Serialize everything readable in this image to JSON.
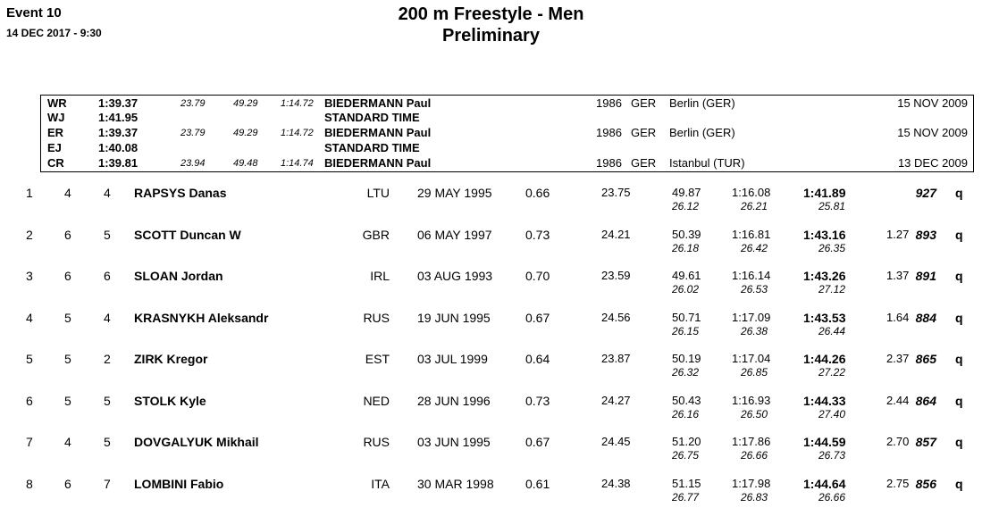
{
  "header": {
    "event": "Event 10",
    "datetime": "14 DEC 2017 -  9:30",
    "title": "200 m Freestyle - Men",
    "subtitle": "Preliminary"
  },
  "records": [
    {
      "code": "WR",
      "time": "1:39.37",
      "splits": [
        "23.79",
        "49.29",
        "1:14.72"
      ],
      "name": "BIEDERMANN Paul",
      "yob": "1986",
      "nat": "GER",
      "place": "Berlin (GER)",
      "date": "15 NOV 2009"
    },
    {
      "code": "WJ",
      "time": "1:41.95",
      "splits": [
        "",
        "",
        ""
      ],
      "name": "STANDARD TIME",
      "yob": "",
      "nat": "",
      "place": "",
      "date": ""
    },
    {
      "code": "ER",
      "time": "1:39.37",
      "splits": [
        "23.79",
        "49.29",
        "1:14.72"
      ],
      "name": "BIEDERMANN Paul",
      "yob": "1986",
      "nat": "GER",
      "place": "Berlin (GER)",
      "date": "15 NOV 2009"
    },
    {
      "code": "EJ",
      "time": "1:40.08",
      "splits": [
        "",
        "",
        ""
      ],
      "name": "STANDARD TIME",
      "yob": "",
      "nat": "",
      "place": "",
      "date": ""
    },
    {
      "code": "CR",
      "time": "1:39.81",
      "splits": [
        "23.94",
        "49.48",
        "1:14.74"
      ],
      "name": "BIEDERMANN Paul",
      "yob": "1986",
      "nat": "GER",
      "place": "Istanbul (TUR)",
      "date": "13 DEC 2009"
    }
  ],
  "results": [
    {
      "rank": "1",
      "heat": "4",
      "lane": "4",
      "name": "RAPSYS Danas",
      "nat": "LTU",
      "dob": "29 MAY 1995",
      "rt": "0.66",
      "s50": "23.75",
      "s100": "49.87",
      "s150": "1:16.08",
      "final": "1:41.89",
      "sp100": "26.12",
      "sp150": "26.21",
      "sp200": "25.81",
      "behind": "",
      "points": "927",
      "q": "q"
    },
    {
      "rank": "2",
      "heat": "6",
      "lane": "5",
      "name": "SCOTT Duncan W",
      "nat": "GBR",
      "dob": "06 MAY 1997",
      "rt": "0.73",
      "s50": "24.21",
      "s100": "50.39",
      "s150": "1:16.81",
      "final": "1:43.16",
      "sp100": "26.18",
      "sp150": "26.42",
      "sp200": "26.35",
      "behind": "1.27",
      "points": "893",
      "q": "q"
    },
    {
      "rank": "3",
      "heat": "6",
      "lane": "6",
      "name": "SLOAN Jordan",
      "nat": "IRL",
      "dob": "03 AUG 1993",
      "rt": "0.70",
      "s50": "23.59",
      "s100": "49.61",
      "s150": "1:16.14",
      "final": "1:43.26",
      "sp100": "26.02",
      "sp150": "26.53",
      "sp200": "27.12",
      "behind": "1.37",
      "points": "891",
      "q": "q"
    },
    {
      "rank": "4",
      "heat": "5",
      "lane": "4",
      "name": "KRASNYKH Aleksandr",
      "nat": "RUS",
      "dob": "19 JUN 1995",
      "rt": "0.67",
      "s50": "24.56",
      "s100": "50.71",
      "s150": "1:17.09",
      "final": "1:43.53",
      "sp100": "26.15",
      "sp150": "26.38",
      "sp200": "26.44",
      "behind": "1.64",
      "points": "884",
      "q": "q"
    },
    {
      "rank": "5",
      "heat": "5",
      "lane": "2",
      "name": "ZIRK Kregor",
      "nat": "EST",
      "dob": "03 JUL 1999",
      "rt": "0.64",
      "s50": "23.87",
      "s100": "50.19",
      "s150": "1:17.04",
      "final": "1:44.26",
      "sp100": "26.32",
      "sp150": "26.85",
      "sp200": "27.22",
      "behind": "2.37",
      "points": "865",
      "q": "q"
    },
    {
      "rank": "6",
      "heat": "5",
      "lane": "5",
      "name": "STOLK Kyle",
      "nat": "NED",
      "dob": "28 JUN 1996",
      "rt": "0.73",
      "s50": "24.27",
      "s100": "50.43",
      "s150": "1:16.93",
      "final": "1:44.33",
      "sp100": "26.16",
      "sp150": "26.50",
      "sp200": "27.40",
      "behind": "2.44",
      "points": "864",
      "q": "q"
    },
    {
      "rank": "7",
      "heat": "4",
      "lane": "5",
      "name": "DOVGALYUK Mikhail",
      "nat": "RUS",
      "dob": "03 JUN 1995",
      "rt": "0.67",
      "s50": "24.45",
      "s100": "51.20",
      "s150": "1:17.86",
      "final": "1:44.59",
      "sp100": "26.75",
      "sp150": "26.66",
      "sp200": "26.73",
      "behind": "2.70",
      "points": "857",
      "q": "q"
    },
    {
      "rank": "8",
      "heat": "6",
      "lane": "7",
      "name": "LOMBINI Fabio",
      "nat": "ITA",
      "dob": "30 MAR 1998",
      "rt": "0.61",
      "s50": "24.38",
      "s100": "51.15",
      "s150": "1:17.98",
      "final": "1:44.64",
      "sp100": "26.77",
      "sp150": "26.83",
      "sp200": "26.66",
      "behind": "2.75",
      "points": "856",
      "q": "q"
    }
  ]
}
